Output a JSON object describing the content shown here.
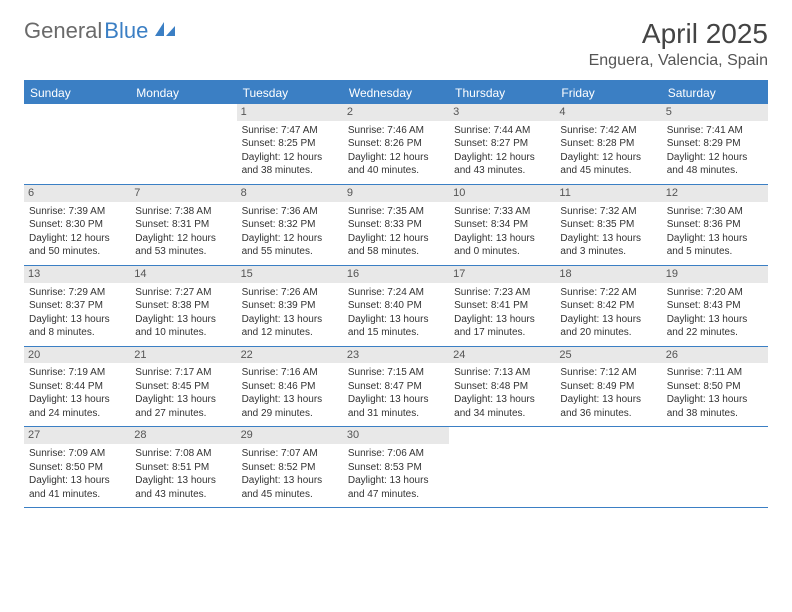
{
  "logo": {
    "text1": "General",
    "text2": "Blue"
  },
  "title": "April 2025",
  "location": "Enguera, Valencia, Spain",
  "weekdays": [
    "Sunday",
    "Monday",
    "Tuesday",
    "Wednesday",
    "Thursday",
    "Friday",
    "Saturday"
  ],
  "colors": {
    "accent": "#3b7fc4",
    "daynum_bg": "#e8e8e8",
    "text": "#333333",
    "header_text": "#ffffff"
  },
  "weeks": [
    [
      {
        "blank": true
      },
      {
        "blank": true
      },
      {
        "n": "1",
        "sr": "7:47 AM",
        "ss": "8:25 PM",
        "dl": "12 hours and 38 minutes."
      },
      {
        "n": "2",
        "sr": "7:46 AM",
        "ss": "8:26 PM",
        "dl": "12 hours and 40 minutes."
      },
      {
        "n": "3",
        "sr": "7:44 AM",
        "ss": "8:27 PM",
        "dl": "12 hours and 43 minutes."
      },
      {
        "n": "4",
        "sr": "7:42 AM",
        "ss": "8:28 PM",
        "dl": "12 hours and 45 minutes."
      },
      {
        "n": "5",
        "sr": "7:41 AM",
        "ss": "8:29 PM",
        "dl": "12 hours and 48 minutes."
      }
    ],
    [
      {
        "n": "6",
        "sr": "7:39 AM",
        "ss": "8:30 PM",
        "dl": "12 hours and 50 minutes."
      },
      {
        "n": "7",
        "sr": "7:38 AM",
        "ss": "8:31 PM",
        "dl": "12 hours and 53 minutes."
      },
      {
        "n": "8",
        "sr": "7:36 AM",
        "ss": "8:32 PM",
        "dl": "12 hours and 55 minutes."
      },
      {
        "n": "9",
        "sr": "7:35 AM",
        "ss": "8:33 PM",
        "dl": "12 hours and 58 minutes."
      },
      {
        "n": "10",
        "sr": "7:33 AM",
        "ss": "8:34 PM",
        "dl": "13 hours and 0 minutes."
      },
      {
        "n": "11",
        "sr": "7:32 AM",
        "ss": "8:35 PM",
        "dl": "13 hours and 3 minutes."
      },
      {
        "n": "12",
        "sr": "7:30 AM",
        "ss": "8:36 PM",
        "dl": "13 hours and 5 minutes."
      }
    ],
    [
      {
        "n": "13",
        "sr": "7:29 AM",
        "ss": "8:37 PM",
        "dl": "13 hours and 8 minutes."
      },
      {
        "n": "14",
        "sr": "7:27 AM",
        "ss": "8:38 PM",
        "dl": "13 hours and 10 minutes."
      },
      {
        "n": "15",
        "sr": "7:26 AM",
        "ss": "8:39 PM",
        "dl": "13 hours and 12 minutes."
      },
      {
        "n": "16",
        "sr": "7:24 AM",
        "ss": "8:40 PM",
        "dl": "13 hours and 15 minutes."
      },
      {
        "n": "17",
        "sr": "7:23 AM",
        "ss": "8:41 PM",
        "dl": "13 hours and 17 minutes."
      },
      {
        "n": "18",
        "sr": "7:22 AM",
        "ss": "8:42 PM",
        "dl": "13 hours and 20 minutes."
      },
      {
        "n": "19",
        "sr": "7:20 AM",
        "ss": "8:43 PM",
        "dl": "13 hours and 22 minutes."
      }
    ],
    [
      {
        "n": "20",
        "sr": "7:19 AM",
        "ss": "8:44 PM",
        "dl": "13 hours and 24 minutes."
      },
      {
        "n": "21",
        "sr": "7:17 AM",
        "ss": "8:45 PM",
        "dl": "13 hours and 27 minutes."
      },
      {
        "n": "22",
        "sr": "7:16 AM",
        "ss": "8:46 PM",
        "dl": "13 hours and 29 minutes."
      },
      {
        "n": "23",
        "sr": "7:15 AM",
        "ss": "8:47 PM",
        "dl": "13 hours and 31 minutes."
      },
      {
        "n": "24",
        "sr": "7:13 AM",
        "ss": "8:48 PM",
        "dl": "13 hours and 34 minutes."
      },
      {
        "n": "25",
        "sr": "7:12 AM",
        "ss": "8:49 PM",
        "dl": "13 hours and 36 minutes."
      },
      {
        "n": "26",
        "sr": "7:11 AM",
        "ss": "8:50 PM",
        "dl": "13 hours and 38 minutes."
      }
    ],
    [
      {
        "n": "27",
        "sr": "7:09 AM",
        "ss": "8:50 PM",
        "dl": "13 hours and 41 minutes."
      },
      {
        "n": "28",
        "sr": "7:08 AM",
        "ss": "8:51 PM",
        "dl": "13 hours and 43 minutes."
      },
      {
        "n": "29",
        "sr": "7:07 AM",
        "ss": "8:52 PM",
        "dl": "13 hours and 45 minutes."
      },
      {
        "n": "30",
        "sr": "7:06 AM",
        "ss": "8:53 PM",
        "dl": "13 hours and 47 minutes."
      },
      {
        "blank": true
      },
      {
        "blank": true
      },
      {
        "blank": true
      }
    ]
  ],
  "labels": {
    "sunrise": "Sunrise:",
    "sunset": "Sunset:",
    "daylight": "Daylight:"
  }
}
